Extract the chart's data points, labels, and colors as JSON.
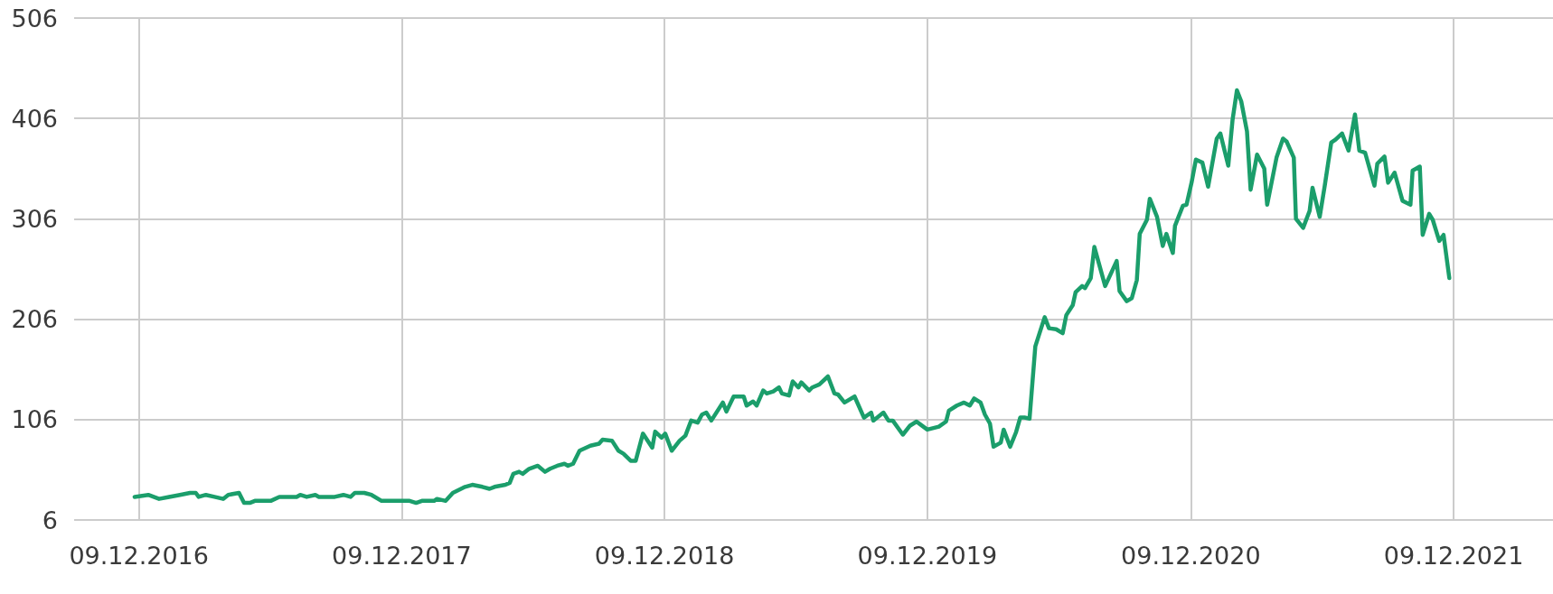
{
  "chart_data": {
    "type": "line",
    "x": [
      "2016-12-03",
      "2016-12-22",
      "2017-01-06",
      "2017-01-20",
      "2017-02-04",
      "2017-02-18",
      "2017-02-26",
      "2017-03-02",
      "2017-03-12",
      "2017-03-24",
      "2017-04-05",
      "2017-04-12",
      "2017-04-27",
      "2017-05-04",
      "2017-05-12",
      "2017-05-19",
      "2017-06-10",
      "2017-06-22",
      "2017-07-16",
      "2017-07-21",
      "2017-07-30",
      "2017-08-11",
      "2017-08-16",
      "2017-09-07",
      "2017-09-19",
      "2017-09-29",
      "2017-10-05",
      "2017-10-18",
      "2017-10-28",
      "2017-11-11",
      "2017-12-20",
      "2017-12-29",
      "2018-01-06",
      "2018-01-23",
      "2018-01-27",
      "2018-02-08",
      "2018-02-18",
      "2018-03-07",
      "2018-03-17",
      "2018-03-31",
      "2018-04-10",
      "2018-04-17",
      "2018-05-02",
      "2018-05-08",
      "2018-05-13",
      "2018-05-21",
      "2018-05-26",
      "2018-06-04",
      "2018-06-16",
      "2018-06-26",
      "2018-07-03",
      "2018-07-13",
      "2018-07-23",
      "2018-07-28",
      "2018-08-04",
      "2018-08-13",
      "2018-08-28",
      "2018-09-09",
      "2018-09-14",
      "2018-09-27",
      "2018-10-06",
      "2018-10-13",
      "2018-10-23",
      "2018-10-30",
      "2018-11-09",
      "2018-11-22",
      "2018-11-26",
      "2018-12-05",
      "2018-12-10",
      "2018-12-19",
      "2018-12-30",
      "2019-01-07",
      "2019-01-15",
      "2019-01-24",
      "2019-01-30",
      "2019-02-05",
      "2019-02-12",
      "2019-02-28",
      "2019-03-05",
      "2019-03-15",
      "2019-03-29",
      "2019-04-02",
      "2019-04-11",
      "2019-04-16",
      "2019-04-25",
      "2019-04-30",
      "2019-05-09",
      "2019-05-17",
      "2019-05-21",
      "2019-05-31",
      "2019-06-05",
      "2019-06-13",
      "2019-06-17",
      "2019-06-28",
      "2019-07-02",
      "2019-07-12",
      "2019-07-24",
      "2019-08-02",
      "2019-08-07",
      "2019-08-16",
      "2019-08-30",
      "2019-09-12",
      "2019-09-22",
      "2019-09-25",
      "2019-10-09",
      "2019-10-16",
      "2019-10-22",
      "2019-11-05",
      "2019-11-15",
      "2019-11-24",
      "2019-12-09",
      "2019-12-25",
      "2020-01-04",
      "2020-01-08",
      "2020-01-19",
      "2020-01-29",
      "2020-02-06",
      "2020-02-12",
      "2020-02-21",
      "2020-02-27",
      "2020-03-05",
      "2020-03-10",
      "2020-03-20",
      "2020-03-24",
      "2020-04-02",
      "2020-04-10",
      "2020-04-16",
      "2020-04-22",
      "2020-04-29",
      "2020-05-07",
      "2020-05-20",
      "2020-05-26",
      "2020-06-05",
      "2020-06-14",
      "2020-06-19",
      "2020-06-28",
      "2020-07-02",
      "2020-07-11",
      "2020-07-15",
      "2020-07-23",
      "2020-07-28",
      "2020-08-12",
      "2020-08-28",
      "2020-09-01",
      "2020-09-11",
      "2020-09-18",
      "2020-09-25",
      "2020-09-29",
      "2020-10-09",
      "2020-10-13",
      "2020-10-23",
      "2020-10-31",
      "2020-11-05",
      "2020-11-14",
      "2020-11-17",
      "2020-11-28",
      "2020-12-03",
      "2020-12-10",
      "2020-12-16",
      "2020-12-25",
      "2021-01-02",
      "2021-01-14",
      "2021-01-19",
      "2021-01-30",
      "2021-02-05",
      "2021-02-11",
      "2021-02-17",
      "2021-02-25",
      "2021-03-02",
      "2021-03-11",
      "2021-03-21",
      "2021-03-25",
      "2021-04-07",
      "2021-04-16",
      "2021-04-21",
      "2021-05-01",
      "2021-05-04",
      "2021-05-14",
      "2021-05-23",
      "2021-05-27",
      "2021-06-06",
      "2021-06-13",
      "2021-06-22",
      "2021-06-28",
      "2021-07-07",
      "2021-07-16",
      "2021-07-25",
      "2021-07-31",
      "2021-08-08",
      "2021-08-21",
      "2021-08-25",
      "2021-09-04",
      "2021-09-09",
      "2021-09-18",
      "2021-09-29",
      "2021-10-10",
      "2021-10-13",
      "2021-10-23",
      "2021-10-27",
      "2021-11-05",
      "2021-11-10",
      "2021-11-19",
      "2021-11-25",
      "2021-12-03"
    ],
    "series": [
      {
        "color": "#1b9e6b",
        "values": [
          29,
          31,
          27,
          29,
          31,
          33,
          33,
          29,
          31,
          29,
          27,
          31,
          33,
          23,
          23,
          25,
          25,
          29,
          29,
          31,
          29,
          31,
          29,
          29,
          31,
          29,
          33,
          33,
          31,
          25,
          25,
          23,
          25,
          25,
          27,
          25,
          33,
          39,
          41,
          39,
          37,
          39,
          41,
          43,
          52,
          54,
          52,
          57,
          60,
          54,
          57,
          60,
          62,
          60,
          62,
          75,
          80,
          82,
          86,
          85,
          75,
          72,
          65,
          65,
          92,
          78,
          94,
          88,
          92,
          75,
          85,
          90,
          105,
          103,
          111,
          113,
          105,
          123,
          114,
          129,
          129,
          120,
          124,
          120,
          135,
          132,
          134,
          138,
          132,
          130,
          144,
          138,
          143,
          135,
          138,
          141,
          149,
          132,
          131,
          123,
          129,
          108,
          113,
          105,
          113,
          105,
          105,
          91,
          100,
          104,
          96,
          99,
          104,
          115,
          120,
          123,
          120,
          127,
          123,
          111,
          102,
          79,
          83,
          96,
          79,
          93,
          108,
          108,
          107,
          179,
          208,
          197,
          196,
          192,
          210,
          220,
          233,
          239,
          237,
          247,
          278,
          239,
          264,
          234,
          224,
          227,
          245,
          291,
          305,
          326,
          308,
          279,
          291,
          272,
          299,
          319,
          320,
          342,
          365,
          362,
          338,
          386,
          391,
          359,
          405,
          434,
          423,
          393,
          335,
          370,
          356,
          320,
          367,
          386,
          383,
          367,
          306,
          297,
          314,
          337,
          308,
          339,
          382,
          385,
          391,
          374,
          410,
          374,
          372,
          339,
          361,
          368,
          342,
          352,
          324,
          320,
          354,
          358,
          290,
          311,
          305,
          284,
          290,
          247
        ]
      }
    ],
    "xlim": [
      "2016-09-10",
      "2022-04-26"
    ],
    "xticks": [
      {
        "value": "2016-12-09",
        "label": "09.12.2016"
      },
      {
        "value": "2017-12-09",
        "label": "09.12.2017"
      },
      {
        "value": "2018-12-09",
        "label": "09.12.2018"
      },
      {
        "value": "2019-12-09",
        "label": "09.12.2019"
      },
      {
        "value": "2020-12-09",
        "label": "09.12.2020"
      },
      {
        "value": "2021-12-09",
        "label": "09.12.2021"
      }
    ],
    "ylim": [
      6,
      506
    ],
    "yticks": [
      6,
      106,
      206,
      306,
      406,
      506
    ],
    "grid": true,
    "line_style": "solid"
  }
}
